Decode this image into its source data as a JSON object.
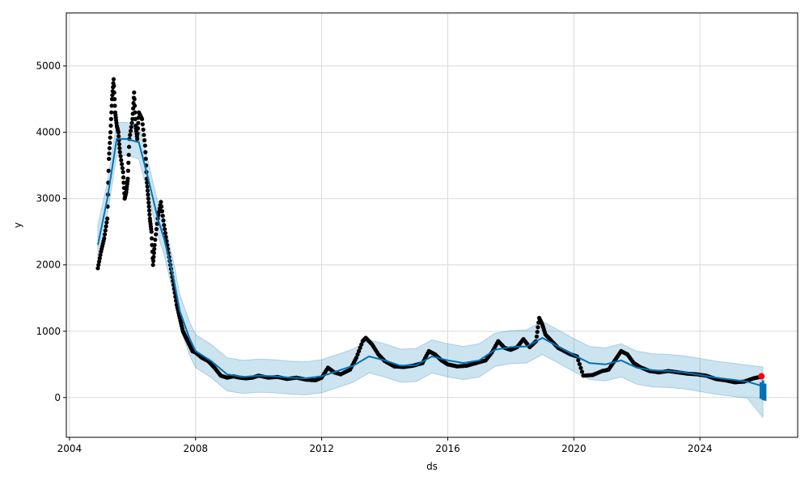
{
  "chart_data": {
    "type": "scatter",
    "title": "",
    "xlabel": "ds",
    "ylabel": "y",
    "xlim": [
      2003.9,
      2027.1
    ],
    "ylim": [
      -600,
      5800
    ],
    "x_ticks": [
      2004,
      2008,
      2012,
      2016,
      2020,
      2024
    ],
    "x_tick_labels": [
      "2004",
      "2008",
      "2012",
      "2016",
      "2020",
      "2024"
    ],
    "y_ticks": [
      0,
      1000,
      2000,
      3000,
      4000,
      5000
    ],
    "y_tick_labels": [
      "0",
      "1000",
      "2000",
      "3000",
      "4000",
      "5000"
    ],
    "grid": true,
    "colors": {
      "observed": "#000000",
      "forecast_line": "#0072B2",
      "uncertainty_band": "#0072B2",
      "last_point": "#ff0000",
      "grid": "#d9d9d9"
    },
    "series": [
      {
        "kind": "observed-points",
        "x": [
          2004.9,
          2005.0,
          2005.1,
          2005.2,
          2005.25,
          2005.3,
          2005.35,
          2005.4,
          2005.45,
          2005.5,
          2005.55,
          2005.6,
          2005.7,
          2005.75,
          2005.8,
          2005.85,
          2005.9,
          2006.0,
          2006.05,
          2006.1,
          2006.15,
          2006.2,
          2006.3,
          2006.4,
          2006.45,
          2006.5,
          2006.55,
          2006.6,
          2006.65,
          2006.7,
          2006.8,
          2006.9,
          2007.0,
          2007.1,
          2007.2,
          2007.3,
          2007.4,
          2007.5,
          2007.6,
          2007.7,
          2007.8,
          2007.9,
          2008.0,
          2008.2,
          2008.4,
          2008.6,
          2008.8,
          2009.0,
          2009.2,
          2009.4,
          2009.6,
          2009.8,
          2010.0,
          2010.3,
          2010.6,
          2010.9,
          2011.2,
          2011.5,
          2011.8,
          2012.0,
          2012.2,
          2012.4,
          2012.6,
          2012.9,
          2013.1,
          2013.3,
          2013.4,
          2013.6,
          2013.8,
          2014.0,
          2014.3,
          2014.6,
          2014.9,
          2015.2,
          2015.4,
          2015.6,
          2015.8,
          2016.0,
          2016.3,
          2016.6,
          2016.9,
          2017.2,
          2017.4,
          2017.6,
          2017.8,
          2018.0,
          2018.2,
          2018.4,
          2018.6,
          2018.8,
          2018.9,
          2019.0,
          2019.1,
          2019.3,
          2019.5,
          2019.7,
          2019.9,
          2020.1,
          2020.3,
          2020.6,
          2020.9,
          2021.1,
          2021.3,
          2021.5,
          2021.7,
          2021.9,
          2022.1,
          2022.4,
          2022.7,
          2023.0,
          2023.3,
          2023.6,
          2023.9,
          2024.2,
          2024.5,
          2024.8,
          2025.1,
          2025.4,
          2025.7,
          2025.9
        ],
        "y": [
          1950,
          2200,
          2400,
          2700,
          3600,
          4000,
          4500,
          4800,
          4300,
          4100,
          4000,
          3700,
          3400,
          3000,
          3100,
          3300,
          3900,
          4200,
          4600,
          4100,
          3900,
          4300,
          4200,
          3800,
          3300,
          3000,
          2700,
          2500,
          2000,
          2300,
          2700,
          2950,
          2600,
          2300,
          2000,
          1700,
          1400,
          1200,
          1000,
          900,
          800,
          700,
          680,
          600,
          550,
          450,
          330,
          300,
          320,
          300,
          290,
          300,
          330,
          300,
          310,
          280,
          300,
          270,
          260,
          300,
          450,
          380,
          350,
          420,
          600,
          850,
          900,
          800,
          650,
          550,
          470,
          460,
          480,
          520,
          700,
          650,
          560,
          500,
          470,
          480,
          520,
          560,
          680,
          850,
          750,
          720,
          760,
          880,
          760,
          850,
          1200,
          1100,
          950,
          850,
          750,
          700,
          650,
          620,
          330,
          340,
          400,
          420,
          560,
          700,
          650,
          520,
          460,
          400,
          380,
          400,
          380,
          360,
          350,
          330,
          280,
          260,
          230,
          240,
          290,
          310
        ]
      },
      {
        "kind": "forecast-line",
        "x": [
          2004.9,
          2005.2,
          2005.5,
          2005.8,
          2006.2,
          2006.5,
          2006.8,
          2007.0,
          2007.3,
          2007.5,
          2007.8,
          2008.0,
          2008.5,
          2009.0,
          2009.5,
          2010.0,
          2010.5,
          2011.0,
          2011.5,
          2012.0,
          2012.5,
          2013.0,
          2013.5,
          2014.0,
          2014.5,
          2015.0,
          2015.5,
          2016.0,
          2016.5,
          2017.0,
          2017.5,
          2018.0,
          2018.5,
          2019.0,
          2019.5,
          2020.0,
          2020.5,
          2021.0,
          2021.5,
          2022.0,
          2022.5,
          2023.0,
          2023.5,
          2024.0,
          2024.5,
          2025.0,
          2025.5,
          2026.0
        ],
        "y": [
          2300,
          3000,
          3900,
          3900,
          3850,
          3300,
          2700,
          2400,
          1800,
          1300,
          900,
          700,
          550,
          350,
          310,
          330,
          320,
          300,
          290,
          320,
          400,
          480,
          620,
          560,
          480,
          490,
          620,
          560,
          520,
          560,
          720,
          760,
          770,
          900,
          770,
          640,
          520,
          500,
          560,
          450,
          410,
          400,
          380,
          340,
          300,
          270,
          240,
          170
        ]
      },
      {
        "kind": "uncertainty-band-upper",
        "x": [
          2004.9,
          2005.2,
          2005.5,
          2005.8,
          2006.2,
          2006.5,
          2006.8,
          2007.0,
          2007.3,
          2007.5,
          2007.8,
          2008.0,
          2008.5,
          2009.0,
          2009.5,
          2010.0,
          2010.5,
          2011.0,
          2011.5,
          2012.0,
          2012.5,
          2013.0,
          2013.5,
          2014.0,
          2014.5,
          2015.0,
          2015.5,
          2016.0,
          2016.5,
          2017.0,
          2017.5,
          2018.0,
          2018.5,
          2019.0,
          2019.5,
          2020.0,
          2020.5,
          2021.0,
          2021.5,
          2022.0,
          2022.5,
          2023.0,
          2023.5,
          2024.0,
          2024.5,
          2025.0,
          2025.5,
          2026.0
        ],
        "y": [
          2600,
          3250,
          4150,
          4150,
          4100,
          3550,
          2950,
          2650,
          2050,
          1550,
          1150,
          950,
          800,
          600,
          560,
          580,
          570,
          550,
          540,
          570,
          650,
          730,
          870,
          810,
          730,
          740,
          870,
          810,
          770,
          810,
          970,
          1010,
          1020,
          1150,
          1020,
          890,
          770,
          750,
          810,
          700,
          660,
          650,
          630,
          590,
          550,
          520,
          490,
          460
        ]
      },
      {
        "kind": "uncertainty-band-lower",
        "x": [
          2004.9,
          2005.2,
          2005.5,
          2005.8,
          2006.2,
          2006.5,
          2006.8,
          2007.0,
          2007.3,
          2007.5,
          2007.8,
          2008.0,
          2008.5,
          2009.0,
          2009.5,
          2010.0,
          2010.5,
          2011.0,
          2011.5,
          2012.0,
          2012.5,
          2013.0,
          2013.5,
          2014.0,
          2014.5,
          2015.0,
          2015.5,
          2016.0,
          2016.5,
          2017.0,
          2017.5,
          2018.0,
          2018.5,
          2019.0,
          2019.5,
          2020.0,
          2020.5,
          2021.0,
          2021.5,
          2022.0,
          2022.5,
          2023.0,
          2023.5,
          2024.0,
          2024.5,
          2025.0,
          2025.5,
          2026.0
        ],
        "y": [
          2000,
          2750,
          3650,
          3650,
          3600,
          3050,
          2450,
          2150,
          1550,
          1050,
          650,
          450,
          300,
          100,
          60,
          80,
          70,
          50,
          40,
          70,
          150,
          230,
          370,
          310,
          230,
          240,
          370,
          310,
          270,
          310,
          470,
          510,
          520,
          650,
          520,
          390,
          270,
          250,
          310,
          200,
          160,
          150,
          130,
          90,
          50,
          20,
          -10,
          -300
        ]
      },
      {
        "kind": "last-observed-point",
        "x": [
          2025.95
        ],
        "y": [
          320
        ]
      },
      {
        "kind": "forecast-tail",
        "x": [
          2025.93,
          2026.0,
          2026.07
        ],
        "y_high": [
          230,
          260,
          210
        ],
        "y_low": [
          -20,
          -40,
          -50
        ]
      }
    ]
  }
}
